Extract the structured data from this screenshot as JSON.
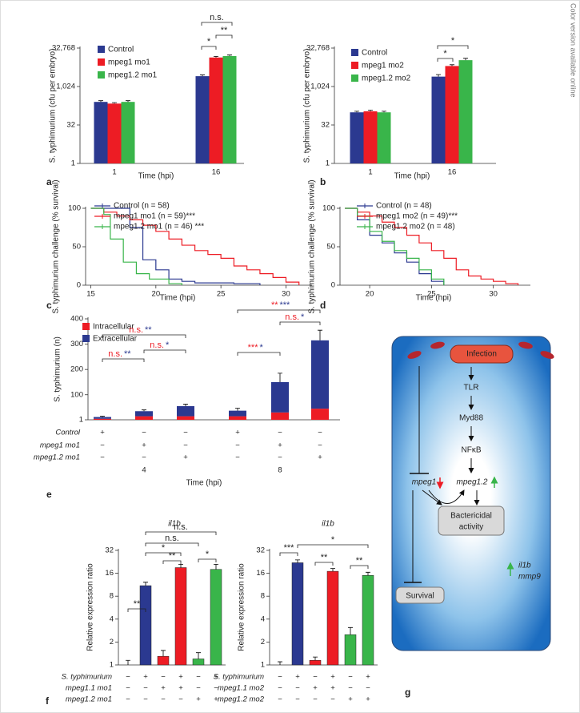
{
  "side_note": "Color version available online",
  "panel_labels": [
    "a",
    "b",
    "c",
    "d",
    "e",
    "f",
    "g"
  ],
  "chart_data": [
    {
      "type": "bar",
      "log_base": 2,
      "y_label": "S. typhimurium (cfu per embryo)",
      "x_label": "Time (hpi)",
      "categories": [
        "1",
        "16"
      ],
      "series": [
        {
          "name": "Control",
          "color": "#2b3990",
          "values": [
            256,
            2600
          ],
          "errors": [
            30,
            300
          ]
        },
        {
          "name": "mpeg1 mo1",
          "color": "#ed1c24",
          "values": [
            220,
            14000
          ],
          "errors": [
            20,
            1500
          ]
        },
        {
          "name": "mpeg1.2 mo1",
          "color": "#39b54a",
          "values": [
            256,
            16000
          ],
          "errors": [
            30,
            1500
          ]
        }
      ],
      "ylim": [
        1,
        32768
      ],
      "yticks": [
        1,
        32,
        {
          "value": 1024,
          "label": "1,024"
        },
        {
          "value": 32768,
          "label": "32,768"
        }
      ],
      "annotations": [
        "n.s.",
        "**",
        "*"
      ]
    },
    {
      "type": "bar",
      "log_base": 2,
      "y_label": "S. typhimurium (cfu per embryo)",
      "x_label": "Time (hpi)",
      "categories": [
        "1",
        "16"
      ],
      "series": [
        {
          "name": "Control",
          "color": "#2b3990",
          "values": [
            100,
            2500
          ],
          "errors": [
            10,
            500
          ]
        },
        {
          "name": "mpeg1 mo2",
          "color": "#ed1c24",
          "values": [
            110,
            6500
          ],
          "errors": [
            12,
            800
          ]
        },
        {
          "name": "mpeg1.2 mo2",
          "color": "#39b54a",
          "values": [
            100,
            11000
          ],
          "errors": [
            10,
            2000
          ]
        }
      ],
      "ylim": [
        1,
        32768
      ],
      "yticks": [
        1,
        32,
        {
          "value": 1024,
          "label": "1,024"
        },
        {
          "value": 32768,
          "label": "32,768"
        }
      ],
      "annotations": [
        "*",
        "*"
      ]
    },
    {
      "type": "line",
      "step": true,
      "y_label": "S. typhimurium challenge (% survival)",
      "x_label": "Time (hpi)",
      "series": [
        {
          "name": "Control (n = 58)",
          "color": "#2b3990",
          "x": [
            15,
            17,
            18,
            19,
            20,
            21,
            22,
            23,
            26,
            28
          ],
          "values": [
            100,
            100,
            75,
            33,
            20,
            8,
            5,
            3,
            2,
            0
          ]
        },
        {
          "name": "mpeg1 mo1 (n = 59)***",
          "color": "#ed1c24",
          "x": [
            15,
            16,
            17,
            18,
            19,
            20,
            21,
            22,
            23,
            24,
            25,
            26,
            27,
            28,
            29,
            30,
            31
          ],
          "values": [
            100,
            95,
            90,
            85,
            78,
            70,
            60,
            52,
            45,
            40,
            35,
            25,
            20,
            15,
            10,
            4,
            0
          ]
        },
        {
          "name": "mpeg1.2 mo1 (n = 46) ***",
          "color": "#39b54a",
          "x": [
            15,
            16,
            16.5,
            17.5,
            18.5,
            19.5,
            21,
            22
          ],
          "values": [
            100,
            92,
            60,
            30,
            15,
            8,
            2,
            0
          ]
        }
      ],
      "xlim": [
        14.6,
        32
      ],
      "xticks": [
        15,
        20,
        25,
        30
      ],
      "ylim": [
        0,
        100
      ],
      "yticks": [
        0,
        50,
        100
      ]
    },
    {
      "type": "line",
      "step": true,
      "y_label": "S. typhimurium challenge (% survival)",
      "x_label": "Time (hpi)",
      "series": [
        {
          "name": "Control (n = 48)",
          "color": "#2b3990",
          "x": [
            18,
            19,
            20,
            21,
            22,
            23,
            24,
            25,
            26
          ],
          "values": [
            100,
            85,
            65,
            55,
            42,
            30,
            15,
            5,
            0
          ]
        },
        {
          "name": "mpeg1 mo2 (n = 49)***",
          "color": "#ed1c24",
          "x": [
            18,
            19,
            20,
            21,
            22,
            23,
            24,
            25,
            26,
            27,
            28,
            29,
            30,
            31,
            32
          ],
          "values": [
            100,
            95,
            90,
            82,
            75,
            65,
            55,
            45,
            35,
            20,
            12,
            8,
            5,
            2,
            0
          ]
        },
        {
          "name": "mpeg1.2 mo2 (n = 48)",
          "color": "#39b54a",
          "x": [
            18,
            19,
            20,
            21,
            22,
            23,
            24,
            25,
            26
          ],
          "values": [
            100,
            90,
            70,
            57,
            45,
            35,
            20,
            8,
            0
          ]
        }
      ],
      "xlim": [
        17.6,
        33
      ],
      "xticks": [
        20,
        25,
        30
      ],
      "ylim": [
        0,
        100
      ],
      "yticks": [
        0,
        50,
        100
      ]
    },
    {
      "type": "bar",
      "stacked": true,
      "y_label": "S. typhimurium (n)",
      "x_label": "Time (hpi)",
      "series": [
        {
          "name": "Intracellular",
          "color": "#ed1c24",
          "values": [
            5,
            15,
            15,
            15,
            30,
            45
          ]
        },
        {
          "name": "Extracellular",
          "color": "#2b3990",
          "values": [
            7,
            20,
            40,
            22,
            120,
            270
          ],
          "errors": [
            3,
            5,
            8,
            10,
            35,
            40
          ]
        }
      ],
      "ylim": [
        1,
        400
      ],
      "yticks": [
        1,
        100,
        200,
        300,
        400
      ],
      "conditions": {
        "rows": [
          "Control",
          "mpeg1 mo1",
          "mpeg1.2 mo1"
        ],
        "signs": [
          [
            "+",
            "−",
            "−",
            "+",
            "−",
            "−"
          ],
          [
            "−",
            "+",
            "−",
            "−",
            "+",
            "−"
          ],
          [
            "−",
            "−",
            "+",
            "−",
            "−",
            "+"
          ]
        ]
      },
      "groups": [
        "4",
        "8"
      ],
      "annotations": [
        {
          "text": [
            "n.s.",
            "**"
          ],
          "colors": [
            "#ed1c24",
            "#2b3990"
          ]
        },
        {
          "text": [
            "n.s.",
            "**"
          ],
          "colors": [
            "#ed1c24",
            "#2b3990"
          ]
        },
        {
          "text": [
            "n.s.",
            "*"
          ],
          "colors": [
            "#ed1c24",
            "#2b3990"
          ]
        },
        {
          "text": [
            "**",
            "***"
          ],
          "colors": [
            "#ed1c24",
            "#2b3990"
          ]
        },
        {
          "text": [
            "n.s.",
            "*"
          ],
          "colors": [
            "#ed1c24",
            "#2b3990"
          ]
        },
        {
          "text": [
            "***",
            "*"
          ],
          "colors": [
            "#ed1c24",
            "#2b3990"
          ]
        }
      ]
    },
    {
      "type": "bar",
      "log_base": 2,
      "title": "il1b",
      "y_label": "Relative expression ratio",
      "values": [
        1,
        11,
        1.3,
        19,
        1.2,
        18
      ],
      "errors": [
        0.15,
        1.2,
        0.25,
        2,
        0.25,
        3
      ],
      "colors": [
        "#ffffff",
        "#2b3990",
        "#ed1c24",
        "#ed1c24",
        "#39b54a",
        "#39b54a"
      ],
      "ylim": [
        1,
        32
      ],
      "yticks": [
        1,
        2,
        4,
        8,
        16,
        32
      ],
      "conditions": {
        "rows": [
          "S. typhimurium",
          "mpeg1.1 mo1",
          "mpeg1.2 mo1"
        ],
        "signs": [
          [
            "−",
            "+",
            "−",
            "+",
            "−",
            "+"
          ],
          [
            "−",
            "−",
            "+",
            "+",
            "−",
            "−"
          ],
          [
            "−",
            "−",
            "−",
            "−",
            "+",
            "+"
          ]
        ]
      },
      "annotations": [
        "n.s.",
        "n.s.",
        "*",
        "**",
        "**",
        "*"
      ]
    },
    {
      "type": "bar",
      "log_base": 2,
      "title": "il1b",
      "y_label": "Relative expression ratio",
      "values": [
        1,
        22,
        1.15,
        17,
        2.5,
        15
      ],
      "errors": [
        0.1,
        2,
        0.12,
        1.5,
        0.6,
        1.5
      ],
      "colors": [
        "#ffffff",
        "#2b3990",
        "#ed1c24",
        "#ed1c24",
        "#39b54a",
        "#39b54a"
      ],
      "ylim": [
        1,
        32
      ],
      "yticks": [
        1,
        2,
        4,
        8,
        16,
        32
      ],
      "conditions": {
        "rows": [
          "S. typhimurium",
          "mpeg1.1 mo2",
          "mpeg1.2 mo2"
        ],
        "signs": [
          [
            "−",
            "+",
            "−",
            "+",
            "−",
            "+"
          ],
          [
            "−",
            "−",
            "+",
            "+",
            "−",
            "−"
          ],
          [
            "−",
            "−",
            "−",
            "−",
            "+",
            "+"
          ]
        ]
      },
      "annotations": [
        "*",
        "***",
        "**",
        "**"
      ]
    }
  ],
  "diagram": {
    "infection": "Infection",
    "steps": [
      "TLR",
      "Myd88",
      "NFκB"
    ],
    "mpeg1": "mpeg1",
    "mpeg1_2": "mpeg1.2",
    "bactericidal": [
      "Bactericidal",
      "activity"
    ],
    "genes": [
      "il1b",
      "mmp9"
    ],
    "survival": "Survival"
  }
}
